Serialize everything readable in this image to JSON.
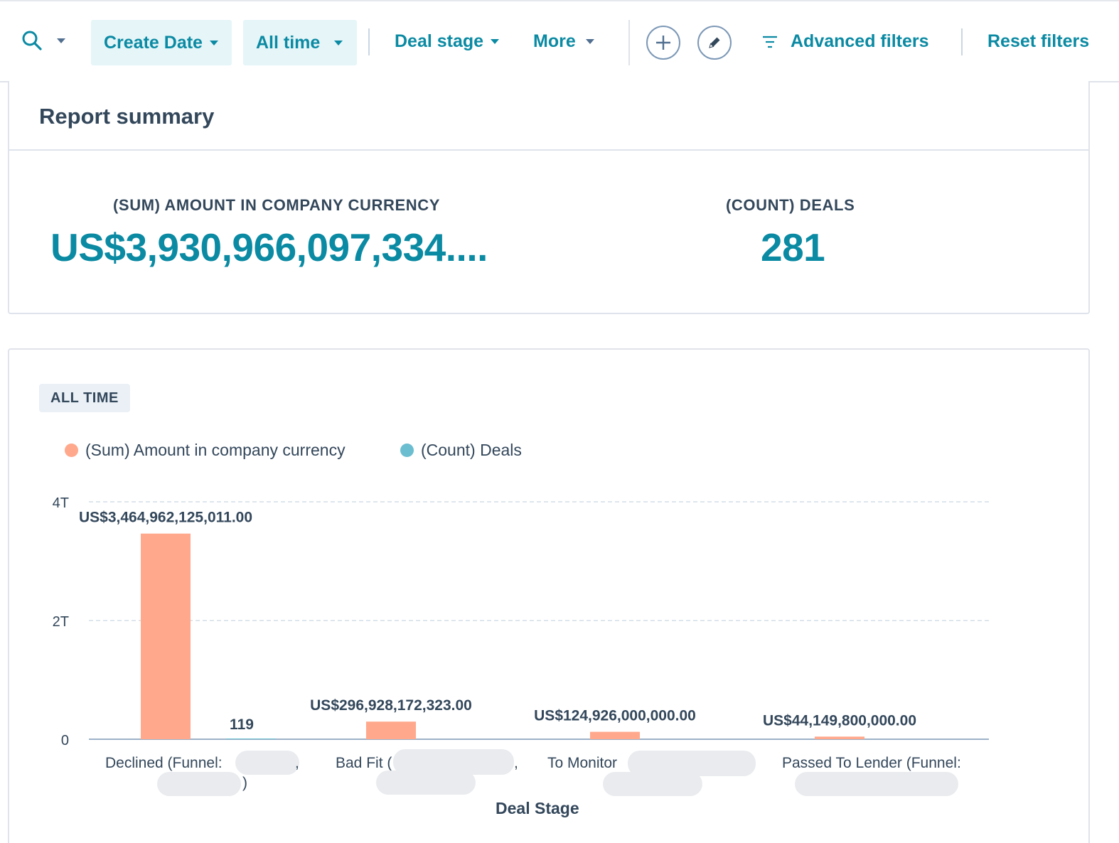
{
  "toolbar": {
    "search_icon": "search-icon",
    "create_date_label": "Create Date",
    "all_time_label": "All time",
    "deal_stage_label": "Deal stage",
    "more_label": "More",
    "add_icon": "plus-icon",
    "edit_icon": "pencil-icon",
    "advanced_filters_label": "Advanced filters",
    "reset_filters_label": "Reset filters"
  },
  "summary": {
    "title": "Report summary",
    "kpis": [
      {
        "label": "(SUM) AMOUNT IN COMPANY CURRENCY",
        "value": "US$3,930,966,097,334...."
      },
      {
        "label": "(COUNT) DEALS",
        "value": "281"
      }
    ]
  },
  "chart": {
    "time_tag": "ALL TIME",
    "legend": [
      {
        "name": "(Sum) Amount in company currency",
        "color": "#ffa88c"
      },
      {
        "name": "(Count) Deals",
        "color": "#6bbdd0"
      }
    ]
  },
  "chart_data": {
    "type": "bar",
    "xlabel": "Deal Stage",
    "ylabel": "",
    "ylim": [
      0,
      4000000000000
    ],
    "yticks": [
      {
        "value": 0,
        "label": "0"
      },
      {
        "value": 2000000000000,
        "label": "2T"
      },
      {
        "value": 4000000000000,
        "label": "4T"
      }
    ],
    "grid": true,
    "legend_position": "top-left",
    "categories": [
      {
        "line1": "Declined (Funnel:",
        "line1_suffix": ",",
        "line2": ")"
      },
      {
        "line1": "Bad Fit (",
        "line1_suffix": ",",
        "line2": ""
      },
      {
        "line1": "To Monitor",
        "line1_suffix": "",
        "line2": ""
      },
      {
        "line1": "Passed To Lender (Funnel:",
        "line1_suffix": "",
        "line2": ""
      }
    ],
    "series": [
      {
        "name": "(Sum) Amount in company currency",
        "color": "#ffa88c",
        "values": [
          3464962125011,
          296928172323,
          124926000000,
          44149800000
        ],
        "labels": [
          "US$3,464,962,125,011.00",
          "US$296,928,172,323.00",
          "US$124,926,000,000.00",
          "US$44,149,800,000.00"
        ]
      },
      {
        "name": "(Count) Deals",
        "color": "#6bbdd0",
        "values": [
          119,
          null,
          null,
          null
        ],
        "labels": [
          "119",
          "",
          "",
          ""
        ]
      }
    ]
  }
}
